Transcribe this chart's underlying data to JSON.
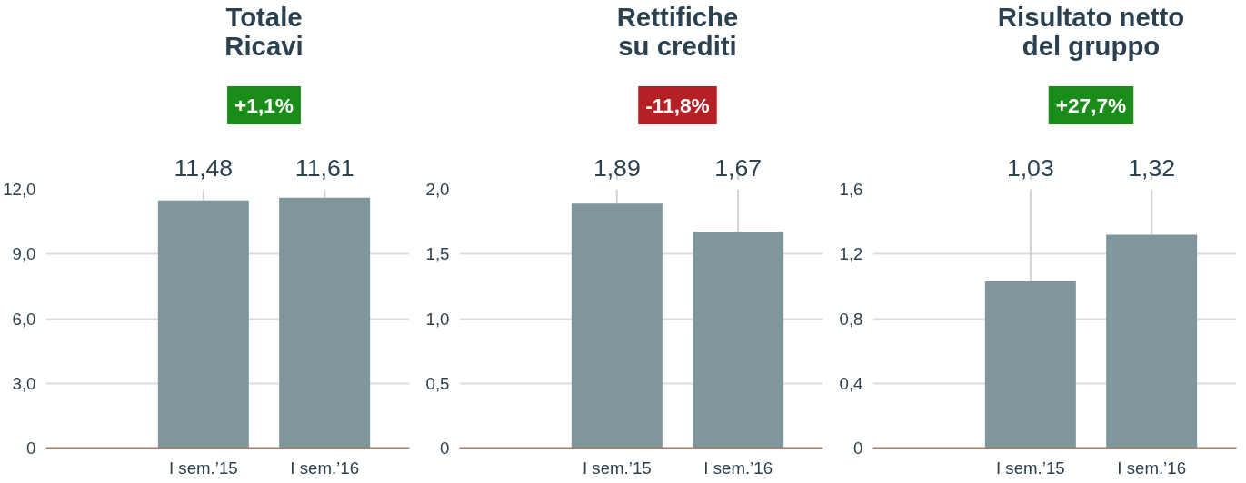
{
  "chart_data": [
    {
      "type": "bar",
      "title": "Totale\nRicavi",
      "categories": [
        "I sem.’15",
        "I sem.’16"
      ],
      "values": [
        11.48,
        11.61
      ],
      "value_labels": [
        "11,48",
        "11,61"
      ],
      "color": "#7f979c",
      "ylim": [
        0,
        12
      ],
      "yticks": [
        0,
        {
          "value": 3,
          "label": "3,0"
        },
        {
          "value": 6,
          "label": "6,0"
        },
        {
          "value": 9,
          "label": "9,0"
        },
        {
          "value": 12,
          "label": "12,0"
        }
      ],
      "grid": "y",
      "annotations": [
        "+1,1%"
      ]
    },
    {
      "type": "bar",
      "title": "Rettifiche\nsu crediti",
      "categories": [
        "I sem.’15",
        "I sem.’16"
      ],
      "values": [
        1.89,
        1.67
      ],
      "value_labels": [
        "1,89",
        "1,67"
      ],
      "color": "#7f979c",
      "ylim": [
        0,
        2
      ],
      "yticks": [
        0,
        {
          "value": 0.5,
          "label": "0,5"
        },
        {
          "value": 1,
          "label": "1,0"
        },
        {
          "value": 1.5,
          "label": "1,5"
        },
        {
          "value": 2,
          "label": "2,0"
        }
      ],
      "grid": "y",
      "annotations": [
        "-11,8%"
      ]
    },
    {
      "type": "bar",
      "title": "Risultato netto\ndel gruppo",
      "categories": [
        "I sem.’15",
        "I sem.’16"
      ],
      "values": [
        1.03,
        1.32
      ],
      "value_labels": [
        "1,03",
        "1,32"
      ],
      "color": "#7f979c",
      "ylim": [
        0,
        1.6
      ],
      "yticks": [
        0,
        {
          "value": 0.4,
          "label": "0,4"
        },
        {
          "value": 0.8,
          "label": "0,8"
        },
        {
          "value": 1.2,
          "label": "1,2"
        },
        {
          "value": 1.6,
          "label": "1,6"
        }
      ],
      "grid": "y",
      "annotations": [
        "+27,7%"
      ]
    }
  ]
}
